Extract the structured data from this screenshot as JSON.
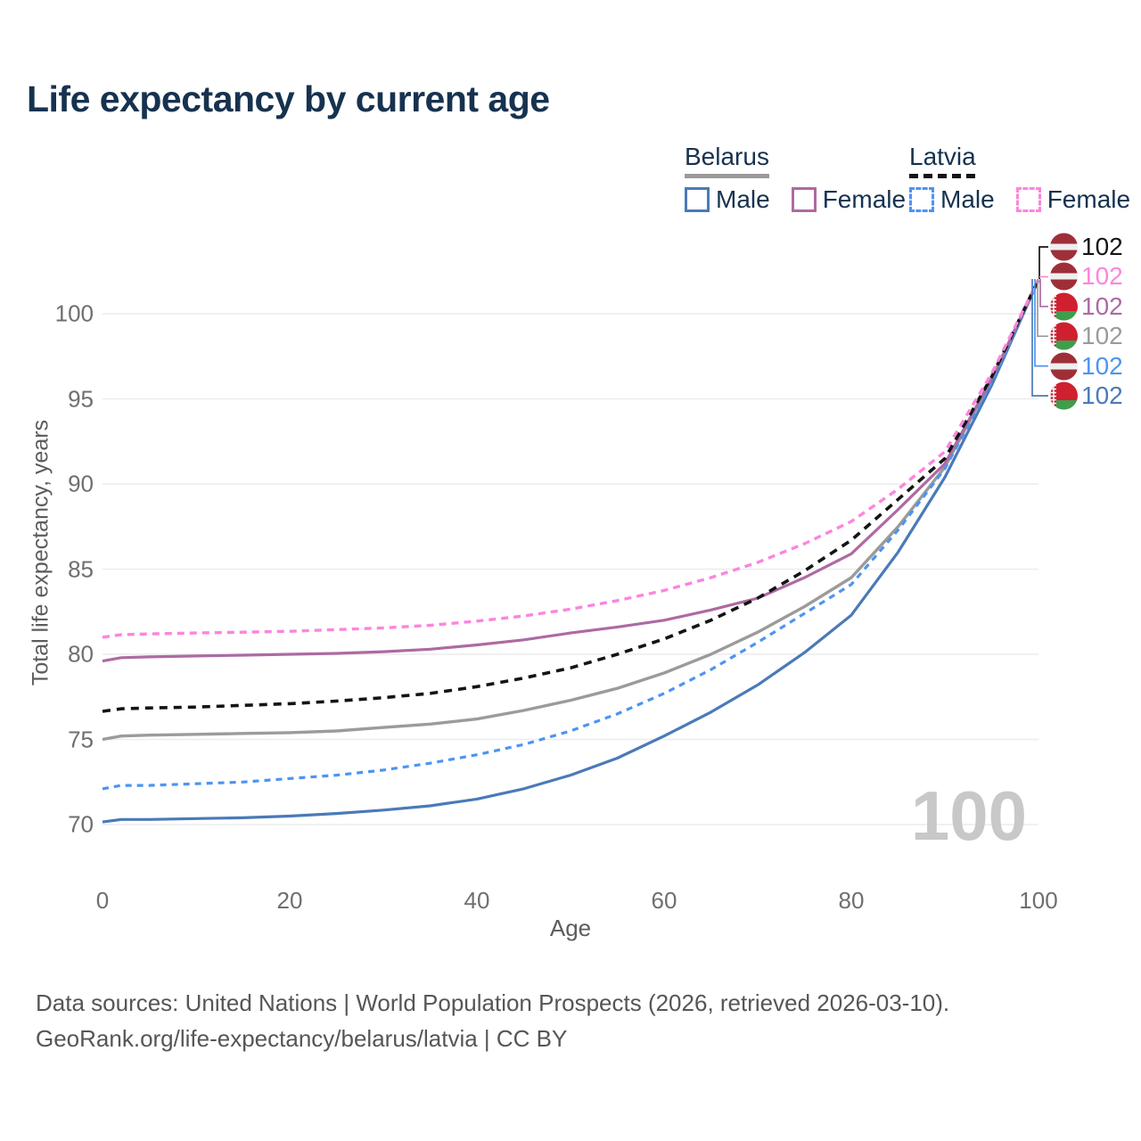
{
  "title": "Life expectancy by current age",
  "legend": {
    "groups": [
      {
        "label": "Belarus",
        "underline_style": "solid",
        "underline_color": "#9a9a9a",
        "items": [
          {
            "label": "Male",
            "color": "#4a7ab8",
            "dashed": false
          },
          {
            "label": "Female",
            "color": "#ad6aa3",
            "dashed": false
          }
        ]
      },
      {
        "label": "Latvia",
        "underline_style": "dashed",
        "underline_color": "#141414",
        "items": [
          {
            "label": "Male",
            "color": "#4d94f2",
            "dashed": true
          },
          {
            "label": "Female",
            "color": "#fc85dd",
            "dashed": true
          }
        ]
      }
    ]
  },
  "axes": {
    "x_label": "Age",
    "y_label": "Total life expectancy, years"
  },
  "watermark": "100",
  "endpoints": [
    {
      "flag": "latvia",
      "value": "102",
      "color": "#141414",
      "series": "Latvia"
    },
    {
      "flag": "latvia",
      "value": "102",
      "color": "#fc85dd",
      "series": "Latvia Female"
    },
    {
      "flag": "belarus",
      "value": "102",
      "color": "#ad6aa3",
      "series": "Belarus Female"
    },
    {
      "flag": "belarus",
      "value": "102",
      "color": "#9b9b9b",
      "series": "Belarus"
    },
    {
      "flag": "latvia",
      "value": "102",
      "color": "#4d94f2",
      "series": "Latvia Male"
    },
    {
      "flag": "belarus",
      "value": "102",
      "color": "#4a7ab8",
      "series": "Belarus Male"
    }
  ],
  "footer": {
    "line1": "Data sources: United Nations | World Population Prospects (2026, retrieved 2026-03-10).",
    "line2": "GeoRank.org/life-expectancy/belarus/latvia | CC BY"
  },
  "chart_data": {
    "type": "line",
    "title": "Life expectancy by current age",
    "xlabel": "Age",
    "ylabel": "Total life expectancy, years",
    "x_ticks": [
      0,
      20,
      40,
      60,
      80,
      100
    ],
    "y_ticks": [
      70,
      75,
      80,
      85,
      90,
      95,
      100
    ],
    "xlim": [
      0,
      100
    ],
    "ylim": [
      68,
      104
    ],
    "grid": "horizontal",
    "legend_position": "top-right",
    "x": [
      0,
      2,
      5,
      10,
      15,
      20,
      25,
      30,
      35,
      40,
      45,
      50,
      55,
      60,
      65,
      70,
      75,
      80,
      85,
      90,
      95,
      100
    ],
    "series": [
      {
        "name": "Belarus",
        "country": "Belarus",
        "group": "total",
        "color": "#9b9b9b",
        "dash": null,
        "width": 3.4,
        "values": [
          75.0,
          75.2,
          75.25,
          75.3,
          75.35,
          75.4,
          75.5,
          75.7,
          75.9,
          76.2,
          76.7,
          77.3,
          78.0,
          78.9,
          80.0,
          81.3,
          82.8,
          84.5,
          87.5,
          91.0,
          96.1,
          102
        ]
      },
      {
        "name": "Belarus Male",
        "country": "Belarus",
        "group": "male",
        "color": "#4a7ab8",
        "dash": null,
        "width": 3.2,
        "values": [
          70.15,
          70.3,
          70.3,
          70.35,
          70.4,
          70.5,
          70.65,
          70.85,
          71.1,
          71.5,
          72.1,
          72.9,
          73.9,
          75.2,
          76.6,
          78.2,
          80.1,
          82.3,
          86.0,
          90.4,
          95.8,
          102
        ]
      },
      {
        "name": "Latvia Male",
        "country": "Latvia",
        "group": "male",
        "color": "#4d94f2",
        "dash": "7 6",
        "width": 3.2,
        "values": [
          72.1,
          72.3,
          72.3,
          72.4,
          72.5,
          72.7,
          72.9,
          73.2,
          73.6,
          74.1,
          74.7,
          75.5,
          76.5,
          77.7,
          79.1,
          80.7,
          82.4,
          84.1,
          87.3,
          90.9,
          96.0,
          102
        ]
      },
      {
        "name": "Belarus Female",
        "country": "Belarus",
        "group": "female",
        "color": "#ad6aa3",
        "dash": null,
        "width": 3.2,
        "values": [
          79.6,
          79.8,
          79.85,
          79.9,
          79.95,
          80.0,
          80.05,
          80.15,
          80.3,
          80.55,
          80.85,
          81.25,
          81.6,
          82.0,
          82.6,
          83.3,
          84.5,
          85.9,
          88.5,
          91.2,
          96.2,
          102
        ]
      },
      {
        "name": "Latvia",
        "country": "Latvia",
        "group": "total",
        "color": "#141414",
        "dash": "9 7",
        "width": 3.6,
        "values": [
          76.65,
          76.8,
          76.85,
          76.9,
          77.0,
          77.1,
          77.25,
          77.45,
          77.7,
          78.1,
          78.6,
          79.2,
          80.0,
          80.9,
          82.0,
          83.3,
          84.9,
          86.7,
          89.1,
          91.5,
          96.3,
          102
        ]
      },
      {
        "name": "Latvia Female",
        "country": "Latvia",
        "group": "female",
        "color": "#fc85dd",
        "dash": "8 6",
        "width": 3.4,
        "values": [
          81.0,
          81.15,
          81.2,
          81.25,
          81.3,
          81.35,
          81.45,
          81.55,
          81.7,
          81.95,
          82.25,
          82.65,
          83.15,
          83.75,
          84.5,
          85.4,
          86.5,
          87.8,
          89.7,
          91.9,
          96.5,
          102
        ]
      }
    ],
    "endpoint_annotation_value": "102",
    "frame_counter": "100"
  }
}
